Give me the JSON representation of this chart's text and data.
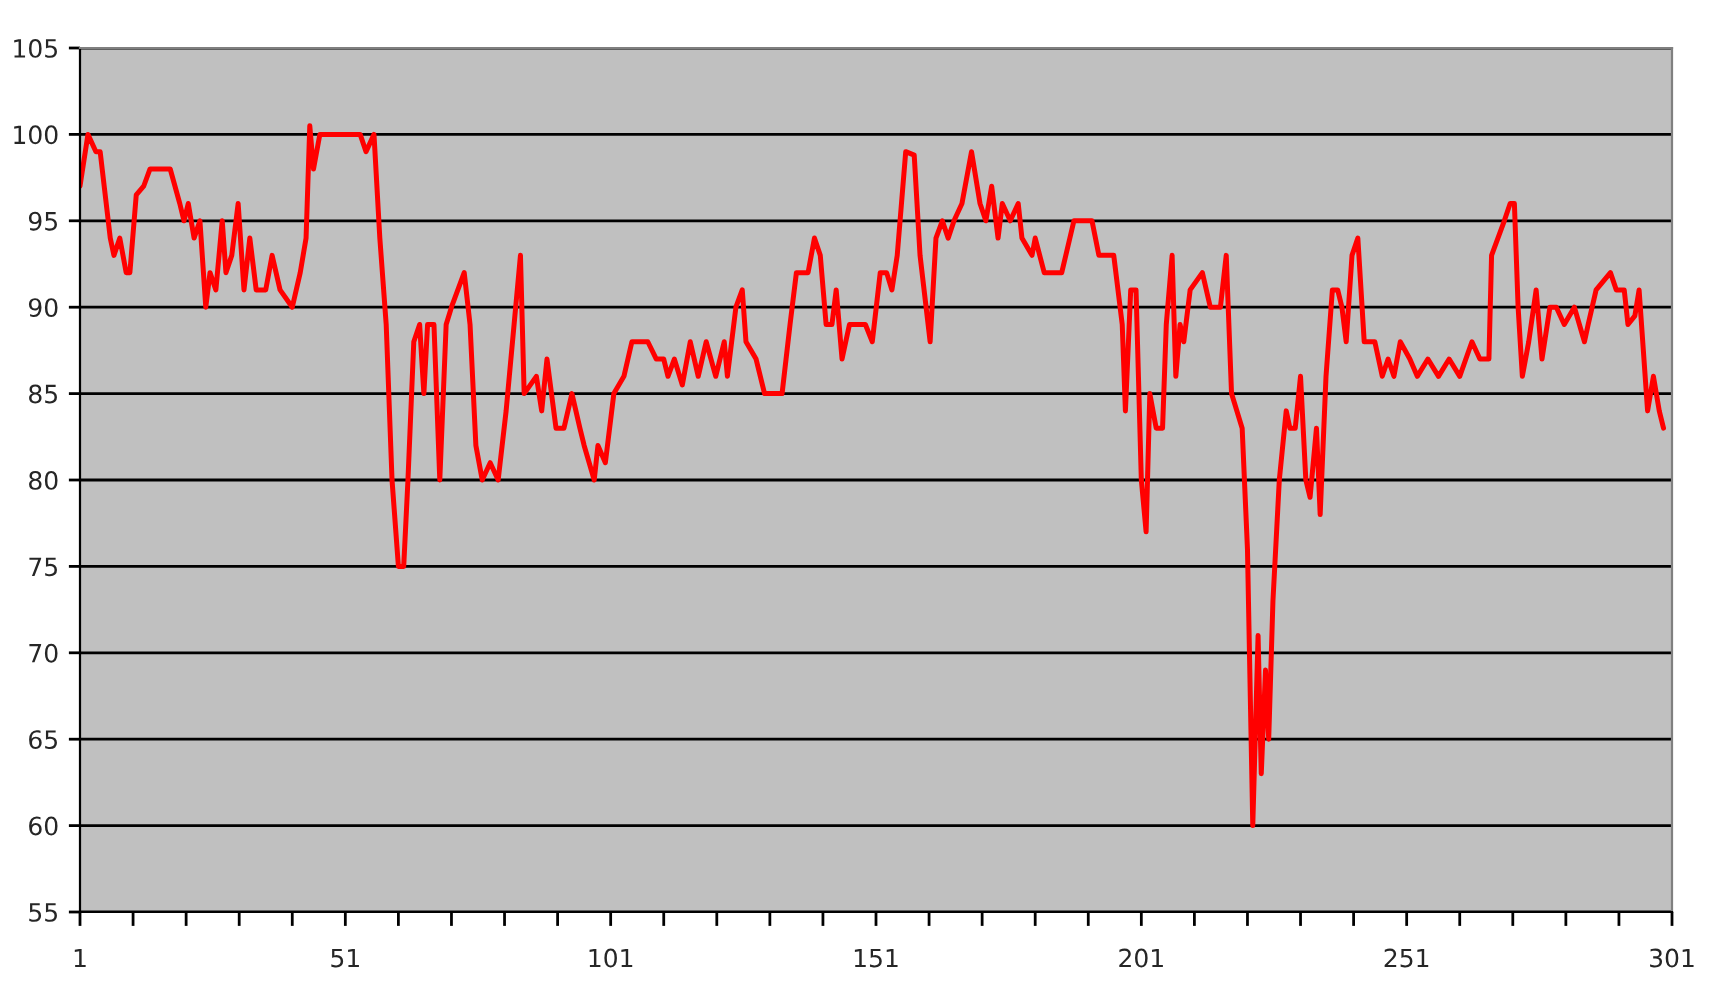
{
  "chart_data": {
    "type": "line",
    "x": [
      1,
      2.5,
      4,
      4.8,
      6.7,
      7.4,
      8.5,
      9.7,
      10.4,
      11.6,
      13,
      14.2,
      18,
      19.8,
      20.6,
      21.4,
      22.5,
      23.6,
      24.7,
      25.5,
      26.6,
      27.8,
      28.5,
      29.6,
      30.8,
      31.9,
      33,
      34.2,
      36,
      37.2,
      38.7,
      41,
      42.5,
      43.6,
      44.3,
      45,
      46.2,
      48,
      53.8,
      54.9,
      56.4,
      57.5,
      58.7,
      59.8,
      61,
      62,
      62.8,
      63.9,
      65,
      65.8,
      66.5,
      67.7,
      68.8,
      70,
      71,
      73.4,
      74.5,
      75.6,
      76.8,
      78.3,
      79.8,
      81.3,
      82.8,
      84,
      84.7,
      87,
      88,
      89,
      90.7,
      92.2,
      93.7,
      95.2,
      96,
      97.9,
      98.6,
      100,
      101.6,
      103.5,
      105,
      108,
      109.6,
      111,
      111.8,
      113,
      114.5,
      116,
      117.5,
      119,
      120.8,
      122.4,
      123,
      124.6,
      125.8,
      126.5,
      128.4,
      130,
      133.3,
      134.8,
      136,
      138.2,
      139.4,
      140.5,
      141.6,
      142.7,
      143.5,
      144.6,
      146,
      149,
      150.3,
      151.8,
      153,
      154,
      155,
      156.6,
      158.2,
      159.3,
      161.2,
      162.3,
      163.5,
      164.6,
      165.7,
      167.2,
      169,
      170.6,
      171.7,
      172.8,
      174,
      174.8,
      176.3,
      177.8,
      178.5,
      180.4,
      181,
      182.7,
      186,
      188.3,
      191.7,
      193,
      195.8,
      197.4,
      198,
      199,
      200,
      201,
      201.9,
      202.6,
      203.8,
      205,
      205.7,
      206.8,
      207.5,
      208.3,
      209,
      210.2,
      212.5,
      214,
      215.9,
      217,
      218,
      220,
      221,
      222,
      223,
      223.6,
      224.4,
      225,
      225.8,
      227,
      228.3,
      229,
      230,
      231,
      232,
      232.8,
      234,
      234.7,
      235.8,
      237,
      238,
      238.8,
      239.6,
      240.7,
      241.8,
      243,
      245,
      246.4,
      247.5,
      248.6,
      249.8,
      251.6,
      253,
      255,
      257,
      259,
      261,
      263.3,
      264.8,
      266.5,
      267,
      269.4,
      270.5,
      271.3,
      272,
      272.8,
      274,
      275.4,
      276.5,
      278,
      279.2,
      280.7,
      282.6,
      284.5,
      285.2,
      286.7,
      289.4,
      290.5,
      292,
      292.7,
      294,
      294.8,
      296.4,
      297.5,
      298.6,
      299.4
    ],
    "series": [
      {
        "color": "#ff0000",
        "values": [
          97,
          100,
          99,
          99,
          94,
          93,
          94,
          92,
          92,
          96.5,
          97,
          98,
          98,
          96,
          95,
          96,
          94,
          95,
          90,
          92,
          91,
          95,
          92,
          93,
          96,
          91,
          94,
          91,
          91,
          93,
          91,
          90,
          92,
          94,
          100.5,
          98,
          100,
          100,
          100,
          99,
          100,
          94,
          89,
          80,
          75,
          75,
          80,
          88,
          89,
          85,
          89,
          89,
          80,
          89,
          90,
          92,
          89,
          82,
          80,
          81,
          80,
          84,
          89,
          93,
          85,
          86,
          84,
          87,
          83,
          83,
          85,
          83,
          82,
          80,
          82,
          81,
          85,
          86,
          88,
          88,
          87,
          87,
          86,
          87,
          85.5,
          88,
          86,
          88,
          86,
          88,
          86,
          90,
          91,
          88,
          87,
          85,
          85,
          89,
          92,
          92,
          94,
          93,
          89,
          89,
          91,
          87,
          89,
          89,
          88,
          92,
          92,
          91,
          93,
          99,
          98.8,
          93,
          88,
          94,
          95,
          94,
          95,
          96,
          99,
          96,
          95,
          97,
          94,
          96,
          95,
          96,
          94,
          93,
          94,
          92,
          92,
          95,
          95,
          93,
          93,
          89,
          84,
          91,
          91,
          80,
          77,
          85,
          83,
          83,
          89,
          93,
          86,
          89,
          88,
          91,
          92,
          90,
          90,
          93,
          85,
          83,
          76,
          60,
          71,
          63,
          69,
          65,
          73,
          80,
          84,
          83,
          83,
          86,
          80,
          79,
          83,
          78,
          86,
          91,
          91,
          90,
          88,
          93,
          94,
          88,
          88,
          86,
          87,
          86,
          88,
          87,
          86,
          87,
          86,
          87,
          86,
          88,
          87,
          87,
          93,
          95,
          96,
          96,
          90,
          86,
          88,
          91,
          87,
          90,
          90,
          89,
          90,
          88,
          89,
          91,
          92,
          91,
          91,
          89,
          89.5,
          91,
          84,
          86,
          84,
          83
        ]
      }
    ],
    "xlim": [
      1,
      301
    ],
    "xticks": [
      1,
      {
        "value": 11,
        "label": null
      },
      {
        "value": 21,
        "label": null
      },
      {
        "value": 31,
        "label": null
      },
      {
        "value": 41,
        "label": null
      },
      51,
      {
        "value": 61,
        "label": null
      },
      {
        "value": 71,
        "label": null
      },
      {
        "value": 81,
        "label": null
      },
      {
        "value": 91,
        "label": null
      },
      101,
      {
        "value": 111,
        "label": null
      },
      {
        "value": 121,
        "label": null
      },
      {
        "value": 131,
        "label": null
      },
      {
        "value": 141,
        "label": null
      },
      151,
      {
        "value": 161,
        "label": null
      },
      {
        "value": 171,
        "label": null
      },
      {
        "value": 181,
        "label": null
      },
      {
        "value": 191,
        "label": null
      },
      201,
      {
        "value": 211,
        "label": null
      },
      {
        "value": 221,
        "label": null
      },
      {
        "value": 231,
        "label": null
      },
      {
        "value": 241,
        "label": null
      },
      251,
      {
        "value": 261,
        "label": null
      },
      {
        "value": 271,
        "label": null
      },
      {
        "value": 281,
        "label": null
      },
      {
        "value": 291,
        "label": null
      },
      301
    ],
    "ylim": [
      55,
      105
    ],
    "yticks": [
      55,
      60,
      65,
      70,
      75,
      80,
      85,
      90,
      95,
      100,
      105
    ],
    "grid": "y",
    "legend": false,
    "marker": "none",
    "line_style": "solid"
  }
}
